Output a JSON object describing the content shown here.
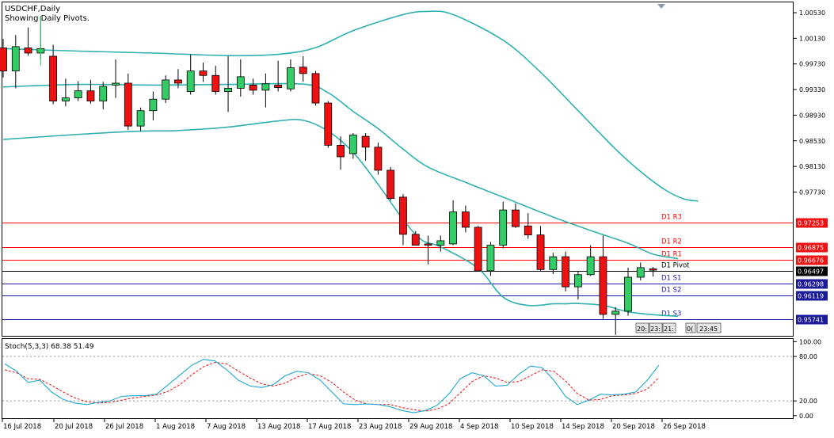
{
  "main_chart": {
    "symbol_label": "USDCHF,Daily",
    "pivots_label": "Showing Daily Pivots.",
    "y_range": [
      0.95485,
      1.00691
    ],
    "y_ticks": [
      "1.00530",
      "1.00130",
      "0.99730",
      "0.99330",
      "0.98930",
      "0.98530",
      "0.98130",
      "0.97730"
    ],
    "pivot_levels": [
      {
        "name": "D1 R3",
        "value": 0.97253,
        "price_label": "0.97253",
        "kind": "resistance"
      },
      {
        "name": "D1 R2",
        "value": 0.96875,
        "price_label": "0.96875",
        "kind": "resistance"
      },
      {
        "name": "D1 R1",
        "value": 0.96676,
        "price_label": "0.96676",
        "kind": "resistance"
      },
      {
        "name": "D1 Pivot",
        "value": 0.96497,
        "price_label": "0.96497",
        "kind": "pivot"
      },
      {
        "name": "D1 S1",
        "value": 0.96298,
        "price_label": "0.96298",
        "kind": "support"
      },
      {
        "name": "D1 S2",
        "value": 0.96119,
        "price_label": "0.96119",
        "kind": "support"
      },
      {
        "name": "D1 S3",
        "value": 0.95741,
        "price_label": "0.95741",
        "kind": "support"
      }
    ],
    "timer_boxes": [
      "20:",
      "23:",
      "21:",
      "0(",
      "23:45"
    ],
    "colors": {
      "bull": "#33cc66",
      "bear": "#ee1111",
      "band": "#30b0b0",
      "resistance": "#ff0000",
      "support": "#1a1aaa",
      "pivot": "#000000"
    }
  },
  "x_labels": [
    "16 Jul 2018",
    "20 Jul 2018",
    "26 Jul 2018",
    "1 Aug 2018",
    "7 Aug 2018",
    "13 Aug 2018",
    "17 Aug 2018",
    "23 Aug 2018",
    "29 Aug 2018",
    "4 Sep 2018",
    "10 Sep 2018",
    "14 Sep 2018",
    "20 Sep 2018",
    "26 Sep 2018"
  ],
  "chart_data": [
    {
      "type": "candlestick",
      "title": "USDCHF,Daily",
      "subtitle": "Showing Daily Pivots.",
      "ylim": [
        0.95485,
        1.00691
      ],
      "series": [
        {
          "name": "USDCHF",
          "ohlc": [
            [
              0.9998,
              1.0012,
              0.9952,
              0.9962
            ],
            [
              0.9962,
              1.0018,
              0.9935,
              1.0
            ],
            [
              0.9998,
              1.003,
              0.9986,
              0.999
            ],
            [
              0.999,
              1.0048,
              0.998,
              0.9997
            ],
            [
              0.9985,
              1.0003,
              0.991,
              0.9915
            ],
            [
              0.9915,
              0.995,
              0.9907,
              0.992
            ],
            [
              0.992,
              0.9946,
              0.9915,
              0.9931
            ],
            [
              0.9931,
              0.9948,
              0.9911,
              0.9915
            ],
            [
              0.9915,
              0.9945,
              0.9902,
              0.9938
            ],
            [
              0.994,
              0.998,
              0.992,
              0.9943
            ],
            [
              0.9943,
              0.9958,
              0.987,
              0.9876
            ],
            [
              0.9876,
              0.9905,
              0.9868,
              0.99
            ],
            [
              0.99,
              0.993,
              0.9885,
              0.9918
            ],
            [
              0.9918,
              0.9955,
              0.9912,
              0.9948
            ],
            [
              0.9948,
              0.9965,
              0.9935,
              0.9943
            ],
            [
              0.993,
              0.9988,
              0.9925,
              0.9962
            ],
            [
              0.9962,
              0.9975,
              0.9945,
              0.9955
            ],
            [
              0.9955,
              0.997,
              0.9925,
              0.993
            ],
            [
              0.993,
              0.9985,
              0.9898,
              0.9935
            ],
            [
              0.9935,
              0.998,
              0.9922,
              0.9953
            ],
            [
              0.994,
              0.995,
              0.9925,
              0.9932
            ],
            [
              0.9932,
              0.9958,
              0.9905,
              0.9942
            ],
            [
              0.994,
              0.9978,
              0.993,
              0.9936
            ],
            [
              0.9934,
              0.998,
              0.993,
              0.9967
            ],
            [
              0.9968,
              0.9985,
              0.9945,
              0.9958
            ],
            [
              0.9958,
              0.9962,
              0.9908,
              0.9912
            ],
            [
              0.9912,
              0.9915,
              0.9842,
              0.9846
            ],
            [
              0.9846,
              0.986,
              0.9808,
              0.9828
            ],
            [
              0.9833,
              0.9865,
              0.9825,
              0.9862
            ],
            [
              0.986,
              0.9865,
              0.9822,
              0.9843
            ],
            [
              0.9843,
              0.985,
              0.98,
              0.9807
            ],
            [
              0.9807,
              0.9812,
              0.976,
              0.9763
            ],
            [
              0.9765,
              0.977,
              0.969,
              0.9707
            ],
            [
              0.9707,
              0.9712,
              0.969,
              0.969
            ],
            [
              0.9692,
              0.9705,
              0.966,
              0.969
            ],
            [
              0.969,
              0.9705,
              0.968,
              0.9697
            ],
            [
              0.9692,
              0.976,
              0.969,
              0.9742
            ],
            [
              0.9742,
              0.9752,
              0.971,
              0.9718
            ],
            [
              0.9718,
              0.972,
              0.965,
              0.965
            ],
            [
              0.965,
              0.9695,
              0.9642,
              0.969
            ],
            [
              0.969,
              0.9758,
              0.9685,
              0.9745
            ],
            [
              0.9745,
              0.9755,
              0.9717,
              0.9719
            ],
            [
              0.972,
              0.974,
              0.97,
              0.9706
            ],
            [
              0.9706,
              0.972,
              0.965,
              0.9652
            ],
            [
              0.9652,
              0.9678,
              0.9645,
              0.9672
            ],
            [
              0.9672,
              0.968,
              0.9618,
              0.9625
            ],
            [
              0.9625,
              0.965,
              0.9605,
              0.9644
            ],
            [
              0.9644,
              0.969,
              0.9642,
              0.9672
            ],
            [
              0.9672,
              0.9705,
              0.9575,
              0.9582
            ],
            [
              0.9582,
              0.9593,
              0.955,
              0.9587
            ],
            [
              0.9587,
              0.9655,
              0.958,
              0.964
            ],
            [
              0.964,
              0.9663,
              0.9635,
              0.9655
            ],
            [
              0.9653,
              0.9656,
              0.9641,
              0.9651
            ]
          ]
        },
        {
          "name": "Upper Band",
          "values": [
            1.0053,
            0.9974,
            0.9759
          ]
        },
        {
          "name": "Middle Band",
          "values": [
            0.99405,
            0.9721,
            0.9669
          ]
        },
        {
          "name": "Lower Band",
          "values": [
            0.9857,
            0.9601,
            0.9578
          ]
        }
      ],
      "horizontal_lines": [
        {
          "name": "D1 R3",
          "value": 0.97253
        },
        {
          "name": "D1 R2",
          "value": 0.96875
        },
        {
          "name": "D1 R1",
          "value": 0.96676
        },
        {
          "name": "D1 Pivot",
          "value": 0.96497
        },
        {
          "name": "D1 S1",
          "value": 0.96298
        },
        {
          "name": "D1 S2",
          "value": 0.96119
        },
        {
          "name": "D1 S3",
          "value": 0.95741
        }
      ]
    },
    {
      "type": "line",
      "title": "Stoch(5,3,3) 68.38 51.49",
      "ylim": [
        -3.4,
        103.6
      ],
      "y_ticks": [
        100.0,
        80.0,
        20.0,
        0.0
      ],
      "levels": [
        80,
        20
      ],
      "series": [
        {
          "name": "%K",
          "values": [
            70,
            60,
            45,
            48,
            32,
            22,
            17,
            15,
            18,
            20,
            26,
            27,
            27,
            29,
            42,
            55,
            68,
            76,
            74,
            62,
            48,
            40,
            38,
            42,
            54,
            60,
            58,
            48,
            32,
            16,
            15,
            16,
            15,
            12,
            7,
            4,
            7,
            14,
            29,
            50,
            58,
            54,
            40,
            41,
            56,
            67,
            65,
            48,
            26,
            15,
            21,
            29,
            28,
            29,
            32,
            48,
            68.38
          ]
        },
        {
          "name": "%D",
          "values": [
            62,
            58,
            50,
            49,
            41,
            32,
            24,
            19,
            17,
            18,
            21,
            24,
            26,
            28,
            33,
            42,
            55,
            66,
            72,
            70,
            60,
            51,
            43,
            40,
            44,
            52,
            57,
            54,
            45,
            32,
            21,
            16,
            15,
            15,
            11,
            8,
            6,
            9,
            16,
            31,
            46,
            54,
            51,
            45,
            46,
            54,
            62,
            60,
            47,
            30,
            21,
            22,
            27,
            28,
            30,
            36,
            51.49
          ]
        }
      ],
      "x_labels": [
        "16 Jul 2018",
        "20 Jul 2018",
        "26 Jul 2018",
        "1 Aug 2018",
        "7 Aug 2018",
        "13 Aug 2018",
        "17 Aug 2018",
        "23 Aug 2018",
        "29 Aug 2018",
        "4 Sep 2018",
        "10 Sep 2018",
        "14 Sep 2018",
        "20 Sep 2018",
        "26 Sep 2018"
      ]
    }
  ],
  "stoch": {
    "label": "Stoch(5,3,3) 68.38 51.49",
    "tick_labels": [
      "100.00",
      "80.00",
      "20.00",
      "0.00"
    ]
  }
}
